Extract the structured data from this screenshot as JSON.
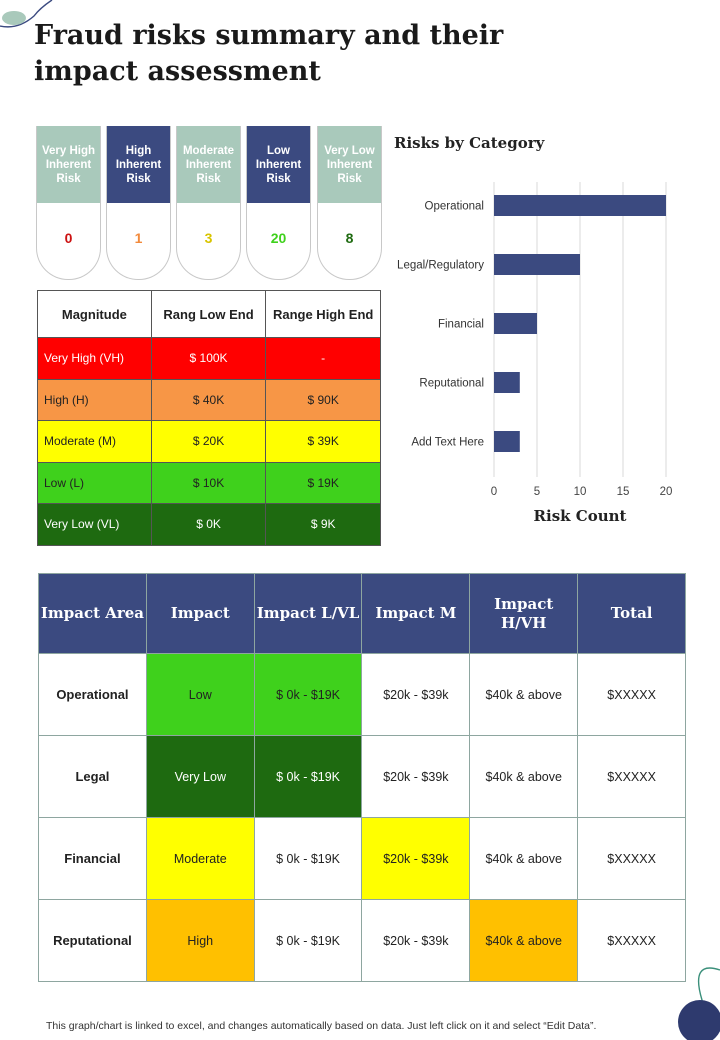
{
  "title": "Fraud risks summary and their impact assessment",
  "risk_cards": [
    {
      "label": "Very High Inherent Risk",
      "value": "0",
      "value_color": "#cc1111",
      "head_style": "light"
    },
    {
      "label": "High Inherent Risk",
      "value": "1",
      "value_color": "#f28a3c",
      "head_style": "dark"
    },
    {
      "label": "Moderate Inherent Risk",
      "value": "3",
      "value_color": "#d8c400",
      "head_style": "light"
    },
    {
      "label": "Low Inherent Risk",
      "value": "20",
      "value_color": "#3fd11c",
      "head_style": "dark"
    },
    {
      "label": "Very Low Inherent Risk",
      "value": "8",
      "value_color": "#1e6a10",
      "head_style": "light"
    }
  ],
  "magnitude_table": {
    "headers": [
      "Magnitude",
      "Rang Low End",
      "Range High End"
    ],
    "rows": [
      {
        "cells": [
          "Very High (VH)",
          "$ 100K",
          "-"
        ],
        "bg": "#ff0000",
        "fg": "#ffffff"
      },
      {
        "cells": [
          "High (H)",
          "$ 40K",
          "$ 90K"
        ],
        "bg": "#f79646",
        "fg": "#222222"
      },
      {
        "cells": [
          "Moderate (M)",
          "$ 20K",
          "$ 39K"
        ],
        "bg": "#ffff00",
        "fg": "#222222"
      },
      {
        "cells": [
          "Low (L)",
          "$ 10K",
          "$ 19K"
        ],
        "bg": "#3fd11c",
        "fg": "#222222"
      },
      {
        "cells": [
          "Very Low (VL)",
          "$ 0K",
          "$ 9K"
        ],
        "bg": "#1e6a10",
        "fg": "#ffffff"
      }
    ]
  },
  "chart_data": {
    "type": "bar",
    "orientation": "horizontal",
    "title": "Risks by Category",
    "xlabel": "Risk Count",
    "ylabel": "",
    "categories": [
      "Operational",
      "Legal/Regulatory",
      "Financial",
      "Reputational",
      "Add Text Here"
    ],
    "values": [
      20,
      10,
      5,
      3,
      3
    ],
    "xlim": [
      0,
      20
    ],
    "xticks": [
      "0",
      "5",
      "10",
      "15",
      "20"
    ],
    "grid": "vertical",
    "bar_color": "#3b4a80"
  },
  "impact_table": {
    "headers": [
      "Impact Area",
      "Impact",
      "Impact L/VL",
      "Impact M",
      "Impact H/VH",
      "Total"
    ],
    "rows": [
      {
        "cells": [
          "Operational",
          "Low",
          "$ 0k - $19K",
          "$20k - $39k",
          "$40k & above",
          "$XXXXX"
        ],
        "bgs": [
          "#ffffff",
          "#3fd11c",
          "#3fd11c",
          "#ffffff",
          "#ffffff",
          "#ffffff"
        ],
        "fgs": [
          "#222222",
          "#222222",
          "#222222",
          "#222222",
          "#222222",
          "#222222"
        ]
      },
      {
        "cells": [
          "Legal",
          "Very Low",
          "$ 0k - $19K",
          "$20k - $39k",
          "$40k & above",
          "$XXXXX"
        ],
        "bgs": [
          "#ffffff",
          "#1e6a10",
          "#1e6a10",
          "#ffffff",
          "#ffffff",
          "#ffffff"
        ],
        "fgs": [
          "#222222",
          "#ffffff",
          "#ffffff",
          "#222222",
          "#222222",
          "#222222"
        ]
      },
      {
        "cells": [
          "Financial",
          "Moderate",
          "$ 0k - $19K",
          "$20k - $39k",
          "$40k & above",
          "$XXXXX"
        ],
        "bgs": [
          "#ffffff",
          "#ffff00",
          "#ffffff",
          "#ffff00",
          "#ffffff",
          "#ffffff"
        ],
        "fgs": [
          "#222222",
          "#222222",
          "#222222",
          "#222222",
          "#222222",
          "#222222"
        ]
      },
      {
        "cells": [
          "Reputational",
          "High",
          "$ 0k - $19K",
          "$20k - $39k",
          "$40k & above",
          "$XXXXX"
        ],
        "bgs": [
          "#ffffff",
          "#ffc000",
          "#ffffff",
          "#ffffff",
          "#ffc000",
          "#ffffff"
        ],
        "fgs": [
          "#222222",
          "#222222",
          "#222222",
          "#222222",
          "#222222",
          "#222222"
        ]
      }
    ]
  },
  "footer": "This graph/chart is linked to excel, and changes automatically based on data. Just left click on it and select “Edit Data”."
}
